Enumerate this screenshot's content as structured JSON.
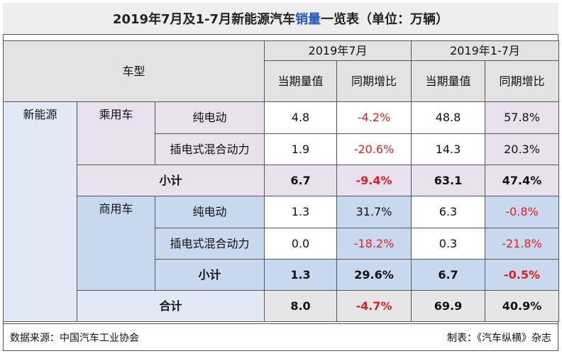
{
  "title": {
    "prefix": "2019年7月及1-7月新能源汽车",
    "highlight": "销量",
    "suffix": "一览表（单位：万辆）"
  },
  "header": {
    "vehicle_type": "车型",
    "period_july": "2019年7月",
    "period_jan_jul": "2019年1-7月",
    "current_value": "当期量值",
    "yoy_growth": "同期增比"
  },
  "category": "新能源",
  "groups": [
    {
      "name": "乘用车",
      "rows": [
        {
          "label": "纯电动",
          "jul": "4.8",
          "jul_yoy": "-4.2%",
          "ytd": "48.8",
          "ytd_yoy": "57.8%"
        },
        {
          "label": "插电式混合动力",
          "jul": "1.9",
          "jul_yoy": "-20.6%",
          "ytd": "14.3",
          "ytd_yoy": "20.3%"
        }
      ],
      "subtotal": {
        "label": "小计",
        "jul": "6.7",
        "jul_yoy": "-9.4%",
        "ytd": "63.1",
        "ytd_yoy": "47.4%"
      }
    },
    {
      "name": "商用车",
      "rows": [
        {
          "label": "纯电动",
          "jul": "1.3",
          "jul_yoy": "31.7%",
          "ytd": "6.3",
          "ytd_yoy": "-0.8%"
        },
        {
          "label": "插电式混合动力",
          "jul": "0.0",
          "jul_yoy": "-18.2%",
          "ytd": "0.3",
          "ytd_yoy": "-21.8%"
        }
      ],
      "subtotal": {
        "label": "小计",
        "jul": "1.3",
        "jul_yoy": "29.6%",
        "ytd": "6.7",
        "ytd_yoy": "-0.5%"
      }
    }
  ],
  "total": {
    "label": "合计",
    "jul": "8.0",
    "jul_yoy": "-4.7%",
    "ytd": "69.9",
    "ytd_yoy": "40.9%"
  },
  "footer": {
    "source": "数据来源：中国汽车工业协会",
    "maker": "制表：《汽车纵横》杂志"
  },
  "colors": {
    "negative": "#e02020",
    "highlight": "#2457c5",
    "purple_bg": "#e8e0ec",
    "blue_bg": "#c8d9ee"
  }
}
